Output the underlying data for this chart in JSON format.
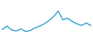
{
  "y_values": [
    3.5,
    5.5,
    3.2,
    2.5,
    3.8,
    2.2,
    2.8,
    4.5,
    5.5,
    7.0,
    9.0,
    11.5,
    15.0,
    9.5,
    10.5,
    8.5,
    7.0,
    6.0,
    7.5,
    6.0
  ],
  "line_color": "#2299cc",
  "line_width": 0.9,
  "background_color": "#ffffff",
  "ylim_min": 0.0,
  "ylim_max": 22.0,
  "xlim_min": -0.5,
  "xlim_max": 19.5
}
